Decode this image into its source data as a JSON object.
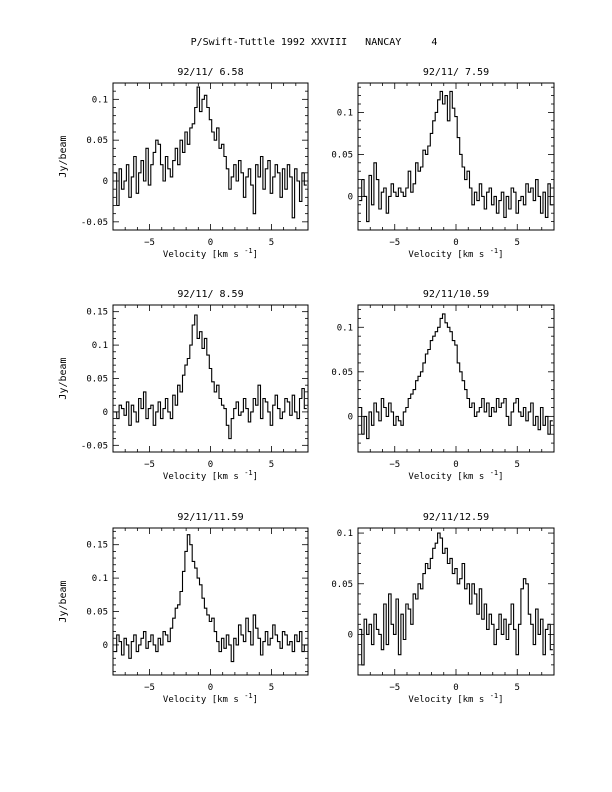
{
  "page": {
    "title": "P/Swift-Tuttle 1992 XXVIII   NANCAY     4"
  },
  "chart_data": [
    {
      "type": "line",
      "title": "92/11/ 6.58",
      "xlabel": "Velocity [km s",
      "xlabel_sup": "-1",
      "xlabel_end": "]",
      "ylabel": "Jy/beam",
      "xlim": [
        -8,
        8
      ],
      "ylim": [
        -0.06,
        0.12
      ],
      "xticks": [
        -5,
        0,
        5
      ],
      "yticks": [
        -0.05,
        0,
        0.05,
        0.1
      ],
      "ytick_labels": [
        "-0.05",
        "0",
        "0.05",
        "0.1"
      ],
      "x": [
        -7.8,
        -7.6,
        -7.4,
        -7.2,
        -7.0,
        -6.8,
        -6.6,
        -6.4,
        -6.2,
        -6.0,
        -5.8,
        -5.6,
        -5.4,
        -5.2,
        -5.0,
        -4.8,
        -4.6,
        -4.4,
        -4.2,
        -4.0,
        -3.8,
        -3.6,
        -3.4,
        -3.2,
        -3.0,
        -2.8,
        -2.6,
        -2.4,
        -2.2,
        -2.0,
        -1.8,
        -1.6,
        -1.4,
        -1.2,
        -1.0,
        -0.8,
        -0.6,
        -0.4,
        -0.2,
        0.0,
        0.2,
        0.4,
        0.6,
        0.8,
        1.0,
        1.2,
        1.4,
        1.6,
        1.8,
        2.0,
        2.2,
        2.4,
        2.6,
        2.8,
        3.0,
        3.2,
        3.4,
        3.6,
        3.8,
        4.0,
        4.2,
        4.4,
        4.6,
        4.8,
        5.0,
        5.2,
        5.4,
        5.6,
        5.8,
        6.0,
        6.2,
        6.4,
        6.6,
        6.8,
        7.0,
        7.2,
        7.4,
        7.6,
        7.8
      ],
      "values": [
        0.01,
        -0.03,
        0.015,
        -0.01,
        0.0,
        0.02,
        -0.02,
        0.005,
        0.03,
        -0.015,
        0.01,
        0.025,
        0.0,
        0.04,
        -0.005,
        0.02,
        0.035,
        0.05,
        0.045,
        0.02,
        0.0,
        0.03,
        0.015,
        0.005,
        0.025,
        0.04,
        0.02,
        0.05,
        0.035,
        0.06,
        0.045,
        0.065,
        0.07,
        0.09,
        0.115,
        0.085,
        0.1,
        0.105,
        0.09,
        0.075,
        0.06,
        0.05,
        0.065,
        0.04,
        0.045,
        0.03,
        0.015,
        -0.01,
        0.005,
        0.02,
        0.0,
        0.025,
        0.01,
        -0.02,
        0.005,
        0.015,
        -0.005,
        -0.04,
        0.02,
        0.005,
        0.03,
        -0.01,
        0.015,
        0.025,
        -0.015,
        0.005,
        0.02,
        0.01,
        -0.02,
        0.015,
        -0.01,
        0.02,
        0.005,
        -0.045,
        0.015,
        0.0,
        -0.025,
        0.01,
        -0.005
      ]
    },
    {
      "type": "line",
      "title": "92/11/ 7.59",
      "xlabel": "Velocity [km s",
      "xlabel_sup": "-1",
      "xlabel_end": "]",
      "ylabel": "",
      "xlim": [
        -8,
        8
      ],
      "ylim": [
        -0.04,
        0.135
      ],
      "xticks": [
        -5,
        0,
        5
      ],
      "yticks": [
        0,
        0.05,
        0.1
      ],
      "ytick_labels": [
        "0",
        "0.05",
        "0.1"
      ],
      "x": [
        -7.8,
        -7.6,
        -7.4,
        -7.2,
        -7.0,
        -6.8,
        -6.6,
        -6.4,
        -6.2,
        -6.0,
        -5.8,
        -5.6,
        -5.4,
        -5.2,
        -5.0,
        -4.8,
        -4.6,
        -4.4,
        -4.2,
        -4.0,
        -3.8,
        -3.6,
        -3.4,
        -3.2,
        -3.0,
        -2.8,
        -2.6,
        -2.4,
        -2.2,
        -2.0,
        -1.8,
        -1.6,
        -1.4,
        -1.2,
        -1.0,
        -0.8,
        -0.6,
        -0.4,
        -0.2,
        0.0,
        0.2,
        0.4,
        0.6,
        0.8,
        1.0,
        1.2,
        1.4,
        1.6,
        1.8,
        2.0,
        2.2,
        2.4,
        2.6,
        2.8,
        3.0,
        3.2,
        3.4,
        3.6,
        3.8,
        4.0,
        4.2,
        4.4,
        4.6,
        4.8,
        5.0,
        5.2,
        5.4,
        5.6,
        5.8,
        6.0,
        6.2,
        6.4,
        6.6,
        6.8,
        7.0,
        7.2,
        7.4,
        7.6,
        7.8
      ],
      "values": [
        -0.005,
        0.02,
        0.0,
        -0.03,
        0.025,
        -0.01,
        0.04,
        0.02,
        -0.015,
        0.005,
        0.01,
        -0.02,
        0.0,
        0.015,
        0.005,
        0.0,
        0.01,
        0.005,
        0.0,
        0.01,
        0.03,
        0.005,
        0.015,
        0.04,
        0.03,
        0.035,
        0.055,
        0.05,
        0.06,
        0.075,
        0.09,
        0.1,
        0.115,
        0.125,
        0.11,
        0.12,
        0.09,
        0.125,
        0.105,
        0.095,
        0.07,
        0.05,
        0.035,
        0.02,
        0.03,
        0.01,
        -0.01,
        0.005,
        -0.005,
        0.015,
        0.0,
        -0.015,
        0.005,
        0.01,
        -0.01,
        0.0,
        -0.02,
        -0.005,
        0.005,
        -0.025,
        0.0,
        -0.015,
        0.01,
        0.005,
        -0.02,
        -0.005,
        0.0,
        -0.01,
        0.015,
        0.005,
        0.01,
        -0.005,
        0.02,
        0.0,
        -0.02,
        0.005,
        -0.025,
        0.015,
        -0.01
      ]
    },
    {
      "type": "line",
      "title": "92/11/ 8.59",
      "xlabel": "Velocity [km s",
      "xlabel_sup": "-1",
      "xlabel_end": "]",
      "ylabel": "Jy/beam",
      "xlim": [
        -8,
        8
      ],
      "ylim": [
        -0.06,
        0.16
      ],
      "xticks": [
        -5,
        0,
        5
      ],
      "yticks": [
        -0.05,
        0,
        0.05,
        0.1,
        0.15
      ],
      "ytick_labels": [
        "-0.05",
        "0",
        "0.05",
        "0.1",
        "0.15"
      ],
      "x": [
        -7.8,
        -7.6,
        -7.4,
        -7.2,
        -7.0,
        -6.8,
        -6.6,
        -6.4,
        -6.2,
        -6.0,
        -5.8,
        -5.6,
        -5.4,
        -5.2,
        -5.0,
        -4.8,
        -4.6,
        -4.4,
        -4.2,
        -4.0,
        -3.8,
        -3.6,
        -3.4,
        -3.2,
        -3.0,
        -2.8,
        -2.6,
        -2.4,
        -2.2,
        -2.0,
        -1.8,
        -1.6,
        -1.4,
        -1.2,
        -1.0,
        -0.8,
        -0.6,
        -0.4,
        -0.2,
        0.0,
        0.2,
        0.4,
        0.6,
        0.8,
        1.0,
        1.2,
        1.4,
        1.6,
        1.8,
        2.0,
        2.2,
        2.4,
        2.6,
        2.8,
        3.0,
        3.2,
        3.4,
        3.6,
        3.8,
        4.0,
        4.2,
        4.4,
        4.6,
        4.8,
        5.0,
        5.2,
        5.4,
        5.6,
        5.8,
        6.0,
        6.2,
        6.4,
        6.6,
        6.8,
        7.0,
        7.2,
        7.4,
        7.6,
        7.8
      ],
      "values": [
        0.0,
        -0.01,
        0.01,
        0.005,
        -0.005,
        0.015,
        -0.02,
        0.01,
        0.0,
        -0.015,
        0.02,
        0.005,
        0.03,
        -0.01,
        0.005,
        0.01,
        -0.02,
        0.0,
        0.015,
        -0.01,
        0.005,
        0.02,
        0.0,
        -0.01,
        0.025,
        0.01,
        0.04,
        0.03,
        0.055,
        0.07,
        0.08,
        0.1,
        0.13,
        0.145,
        0.11,
        0.12,
        0.095,
        0.11,
        0.085,
        0.065,
        0.045,
        0.03,
        0.04,
        0.02,
        0.01,
        0.005,
        -0.02,
        -0.04,
        -0.01,
        0.005,
        0.015,
        -0.005,
        0.0,
        0.02,
        0.005,
        -0.015,
        0.0,
        0.02,
        0.01,
        0.04,
        -0.01,
        0.02,
        0.015,
        0.0,
        -0.02,
        0.01,
        0.025,
        0.005,
        -0.01,
        0.0,
        0.02,
        0.015,
        -0.005,
        0.025,
        0.0,
        -0.01,
        0.02,
        0.035,
        0.005
      ]
    },
    {
      "type": "line",
      "title": "92/11/10.59",
      "xlabel": "Velocity [km s",
      "xlabel_sup": "-1",
      "xlabel_end": "]",
      "ylabel": "",
      "xlim": [
        -8,
        8
      ],
      "ylim": [
        -0.04,
        0.125
      ],
      "xticks": [
        -5,
        0,
        5
      ],
      "yticks": [
        0,
        0.05,
        0.1
      ],
      "ytick_labels": [
        "0",
        "0.05",
        "0.1"
      ],
      "x": [
        -7.8,
        -7.6,
        -7.4,
        -7.2,
        -7.0,
        -6.8,
        -6.6,
        -6.4,
        -6.2,
        -6.0,
        -5.8,
        -5.6,
        -5.4,
        -5.2,
        -5.0,
        -4.8,
        -4.6,
        -4.4,
        -4.2,
        -4.0,
        -3.8,
        -3.6,
        -3.4,
        -3.2,
        -3.0,
        -2.8,
        -2.6,
        -2.4,
        -2.2,
        -2.0,
        -1.8,
        -1.6,
        -1.4,
        -1.2,
        -1.0,
        -0.8,
        -0.6,
        -0.4,
        -0.2,
        0.0,
        0.2,
        0.4,
        0.6,
        0.8,
        1.0,
        1.2,
        1.4,
        1.6,
        1.8,
        2.0,
        2.2,
        2.4,
        2.6,
        2.8,
        3.0,
        3.2,
        3.4,
        3.6,
        3.8,
        4.0,
        4.2,
        4.4,
        4.6,
        4.8,
        5.0,
        5.2,
        5.4,
        5.6,
        5.8,
        6.0,
        6.2,
        6.4,
        6.6,
        6.8,
        7.0,
        7.2,
        7.4,
        7.6,
        7.8
      ],
      "values": [
        0.01,
        -0.02,
        0.0,
        -0.025,
        0.005,
        -0.01,
        0.015,
        0.005,
        -0.005,
        0.02,
        0.01,
        0.0,
        0.015,
        0.005,
        -0.01,
        0.0,
        -0.005,
        -0.01,
        0.005,
        0.01,
        0.02,
        0.025,
        0.03,
        0.04,
        0.045,
        0.05,
        0.06,
        0.07,
        0.075,
        0.085,
        0.09,
        0.095,
        0.1,
        0.11,
        0.115,
        0.105,
        0.1,
        0.095,
        0.085,
        0.08,
        0.06,
        0.05,
        0.04,
        0.03,
        0.02,
        0.01,
        0.015,
        0.0,
        0.005,
        0.01,
        0.02,
        0.005,
        0.015,
        0.0,
        0.01,
        0.005,
        0.02,
        0.01,
        0.015,
        0.02,
        0.0,
        -0.01,
        0.005,
        0.015,
        0.02,
        0.005,
        0.0,
        0.01,
        -0.005,
        0.005,
        0.015,
        -0.01,
        0.0,
        -0.015,
        0.01,
        -0.01,
        0.0,
        -0.02,
        -0.005
      ]
    },
    {
      "type": "line",
      "title": "92/11/11.59",
      "xlabel": "Velocity [km s",
      "xlabel_sup": "-1",
      "xlabel_end": "]",
      "ylabel": "Jy/beam",
      "xlim": [
        -8,
        8
      ],
      "ylim": [
        -0.045,
        0.175
      ],
      "xticks": [
        -5,
        0,
        5
      ],
      "yticks": [
        0,
        0.05,
        0.1,
        0.15
      ],
      "ytick_labels": [
        "0",
        "0.05",
        "0.1",
        "0.15"
      ],
      "x": [
        -7.8,
        -7.6,
        -7.4,
        -7.2,
        -7.0,
        -6.8,
        -6.6,
        -6.4,
        -6.2,
        -6.0,
        -5.8,
        -5.6,
        -5.4,
        -5.2,
        -5.0,
        -4.8,
        -4.6,
        -4.4,
        -4.2,
        -4.0,
        -3.8,
        -3.6,
        -3.4,
        -3.2,
        -3.0,
        -2.8,
        -2.6,
        -2.4,
        -2.2,
        -2.0,
        -1.8,
        -1.6,
        -1.4,
        -1.2,
        -1.0,
        -0.8,
        -0.6,
        -0.4,
        -0.2,
        0.0,
        0.2,
        0.4,
        0.6,
        0.8,
        1.0,
        1.2,
        1.4,
        1.6,
        1.8,
        2.0,
        2.2,
        2.4,
        2.6,
        2.8,
        3.0,
        3.2,
        3.4,
        3.6,
        3.8,
        4.0,
        4.2,
        4.4,
        4.6,
        4.8,
        5.0,
        5.2,
        5.4,
        5.6,
        5.8,
        6.0,
        6.2,
        6.4,
        6.6,
        6.8,
        7.0,
        7.2,
        7.4,
        7.6,
        7.8
      ],
      "values": [
        -0.01,
        0.015,
        0.005,
        -0.015,
        0.01,
        0.0,
        -0.02,
        0.005,
        0.015,
        -0.01,
        0.0,
        0.01,
        0.02,
        -0.005,
        0.005,
        0.015,
        0.0,
        -0.01,
        0.01,
        0.0,
        0.02,
        0.015,
        0.005,
        0.025,
        0.04,
        0.055,
        0.06,
        0.08,
        0.11,
        0.14,
        0.165,
        0.15,
        0.125,
        0.115,
        0.1,
        0.09,
        0.07,
        0.055,
        0.045,
        0.035,
        0.04,
        0.02,
        0.005,
        -0.01,
        0.01,
        -0.005,
        0.015,
        0.0,
        -0.025,
        0.01,
        0.0,
        0.03,
        0.015,
        0.005,
        0.04,
        0.02,
        0.0,
        0.045,
        0.025,
        0.01,
        -0.015,
        0.005,
        0.02,
        0.0,
        0.01,
        0.03,
        0.015,
        0.005,
        -0.005,
        0.02,
        0.015,
        0.0,
        0.005,
        -0.01,
        0.015,
        0.005,
        0.02,
        -0.01,
        0.0
      ]
    },
    {
      "type": "line",
      "title": "92/11/12.59",
      "xlabel": "Velocity [km s",
      "xlabel_sup": "-1",
      "xlabel_end": "]",
      "ylabel": "",
      "xlim": [
        -8,
        8
      ],
      "ylim": [
        -0.04,
        0.105
      ],
      "xticks": [
        -5,
        0,
        5
      ],
      "yticks": [
        0,
        0.05,
        0.1
      ],
      "ytick_labels": [
        "0",
        "0.05",
        "0.1"
      ],
      "x": [
        -7.8,
        -7.6,
        -7.4,
        -7.2,
        -7.0,
        -6.8,
        -6.6,
        -6.4,
        -6.2,
        -6.0,
        -5.8,
        -5.6,
        -5.4,
        -5.2,
        -5.0,
        -4.8,
        -4.6,
        -4.4,
        -4.2,
        -4.0,
        -3.8,
        -3.6,
        -3.4,
        -3.2,
        -3.0,
        -2.8,
        -2.6,
        -2.4,
        -2.2,
        -2.0,
        -1.8,
        -1.6,
        -1.4,
        -1.2,
        -1.0,
        -0.8,
        -0.6,
        -0.4,
        -0.2,
        0.0,
        0.2,
        0.4,
        0.6,
        0.8,
        1.0,
        1.2,
        1.4,
        1.6,
        1.8,
        2.0,
        2.2,
        2.4,
        2.6,
        2.8,
        3.0,
        3.2,
        3.4,
        3.6,
        3.8,
        4.0,
        4.2,
        4.4,
        4.6,
        4.8,
        5.0,
        5.2,
        5.4,
        5.6,
        5.8,
        6.0,
        6.2,
        6.4,
        6.6,
        6.8,
        7.0,
        7.2,
        7.4,
        7.6,
        7.8
      ],
      "values": [
        0.005,
        -0.03,
        0.015,
        0.0,
        0.01,
        -0.01,
        0.02,
        0.005,
        0.0,
        -0.015,
        0.03,
        -0.01,
        0.04,
        0.01,
        0.0,
        0.035,
        -0.02,
        0.02,
        -0.005,
        0.03,
        0.025,
        0.01,
        0.04,
        0.035,
        0.05,
        0.045,
        0.06,
        0.07,
        0.065,
        0.075,
        0.085,
        0.09,
        0.1,
        0.095,
        0.08,
        0.085,
        0.07,
        0.075,
        0.06,
        0.065,
        0.05,
        0.055,
        0.07,
        0.045,
        0.05,
        0.03,
        0.05,
        0.04,
        0.02,
        0.045,
        0.015,
        0.03,
        0.005,
        0.02,
        0.01,
        -0.01,
        0.005,
        0.02,
        0.0,
        0.015,
        -0.005,
        0.01,
        0.03,
        0.005,
        -0.02,
        0.01,
        0.045,
        0.055,
        0.05,
        0.02,
        0.01,
        -0.01,
        0.025,
        0.0,
        0.015,
        -0.02,
        0.005,
        0.01,
        -0.015
      ]
    }
  ]
}
